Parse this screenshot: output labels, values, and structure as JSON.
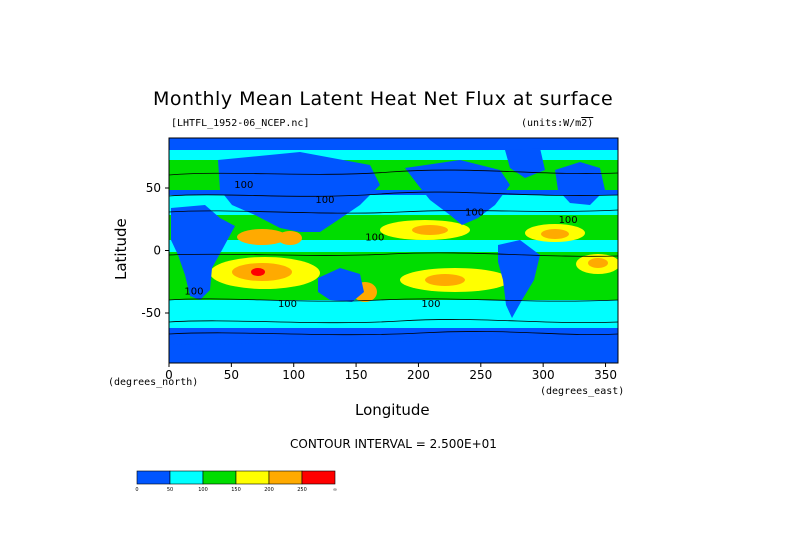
{
  "chart_data": {
    "type": "heatmap",
    "title": "Monthly Mean Latent Heat Net Flux at surface",
    "file_label": "[LHTFL_1952-06_NCEP.nc]",
    "units_label": "(units:W/m^2)",
    "xlabel": "Longitude",
    "ylabel": "Latitude",
    "x_unit_label": "(degrees_east)",
    "y_unit_label": "(degrees_north)",
    "xlim": [
      0,
      360
    ],
    "ylim": [
      -90,
      90
    ],
    "xticks": [
      0,
      50,
      100,
      150,
      200,
      250,
      300,
      350
    ],
    "yticks": [
      -50,
      0,
      50
    ],
    "contour_interval_label": "CONTOUR INTERVAL = 2.500E+01",
    "colorbar": {
      "levels": [
        "0",
        "50",
        "100",
        "150",
        "200",
        "250",
        "∞"
      ],
      "colors": [
        "#0055ff",
        "#00ffff",
        "#00dd00",
        "#ffff00",
        "#ffaa00",
        "#ff0000"
      ]
    },
    "contour_labels": [
      "100",
      "100",
      "100",
      "100",
      "100",
      "100",
      "100",
      "100"
    ]
  }
}
